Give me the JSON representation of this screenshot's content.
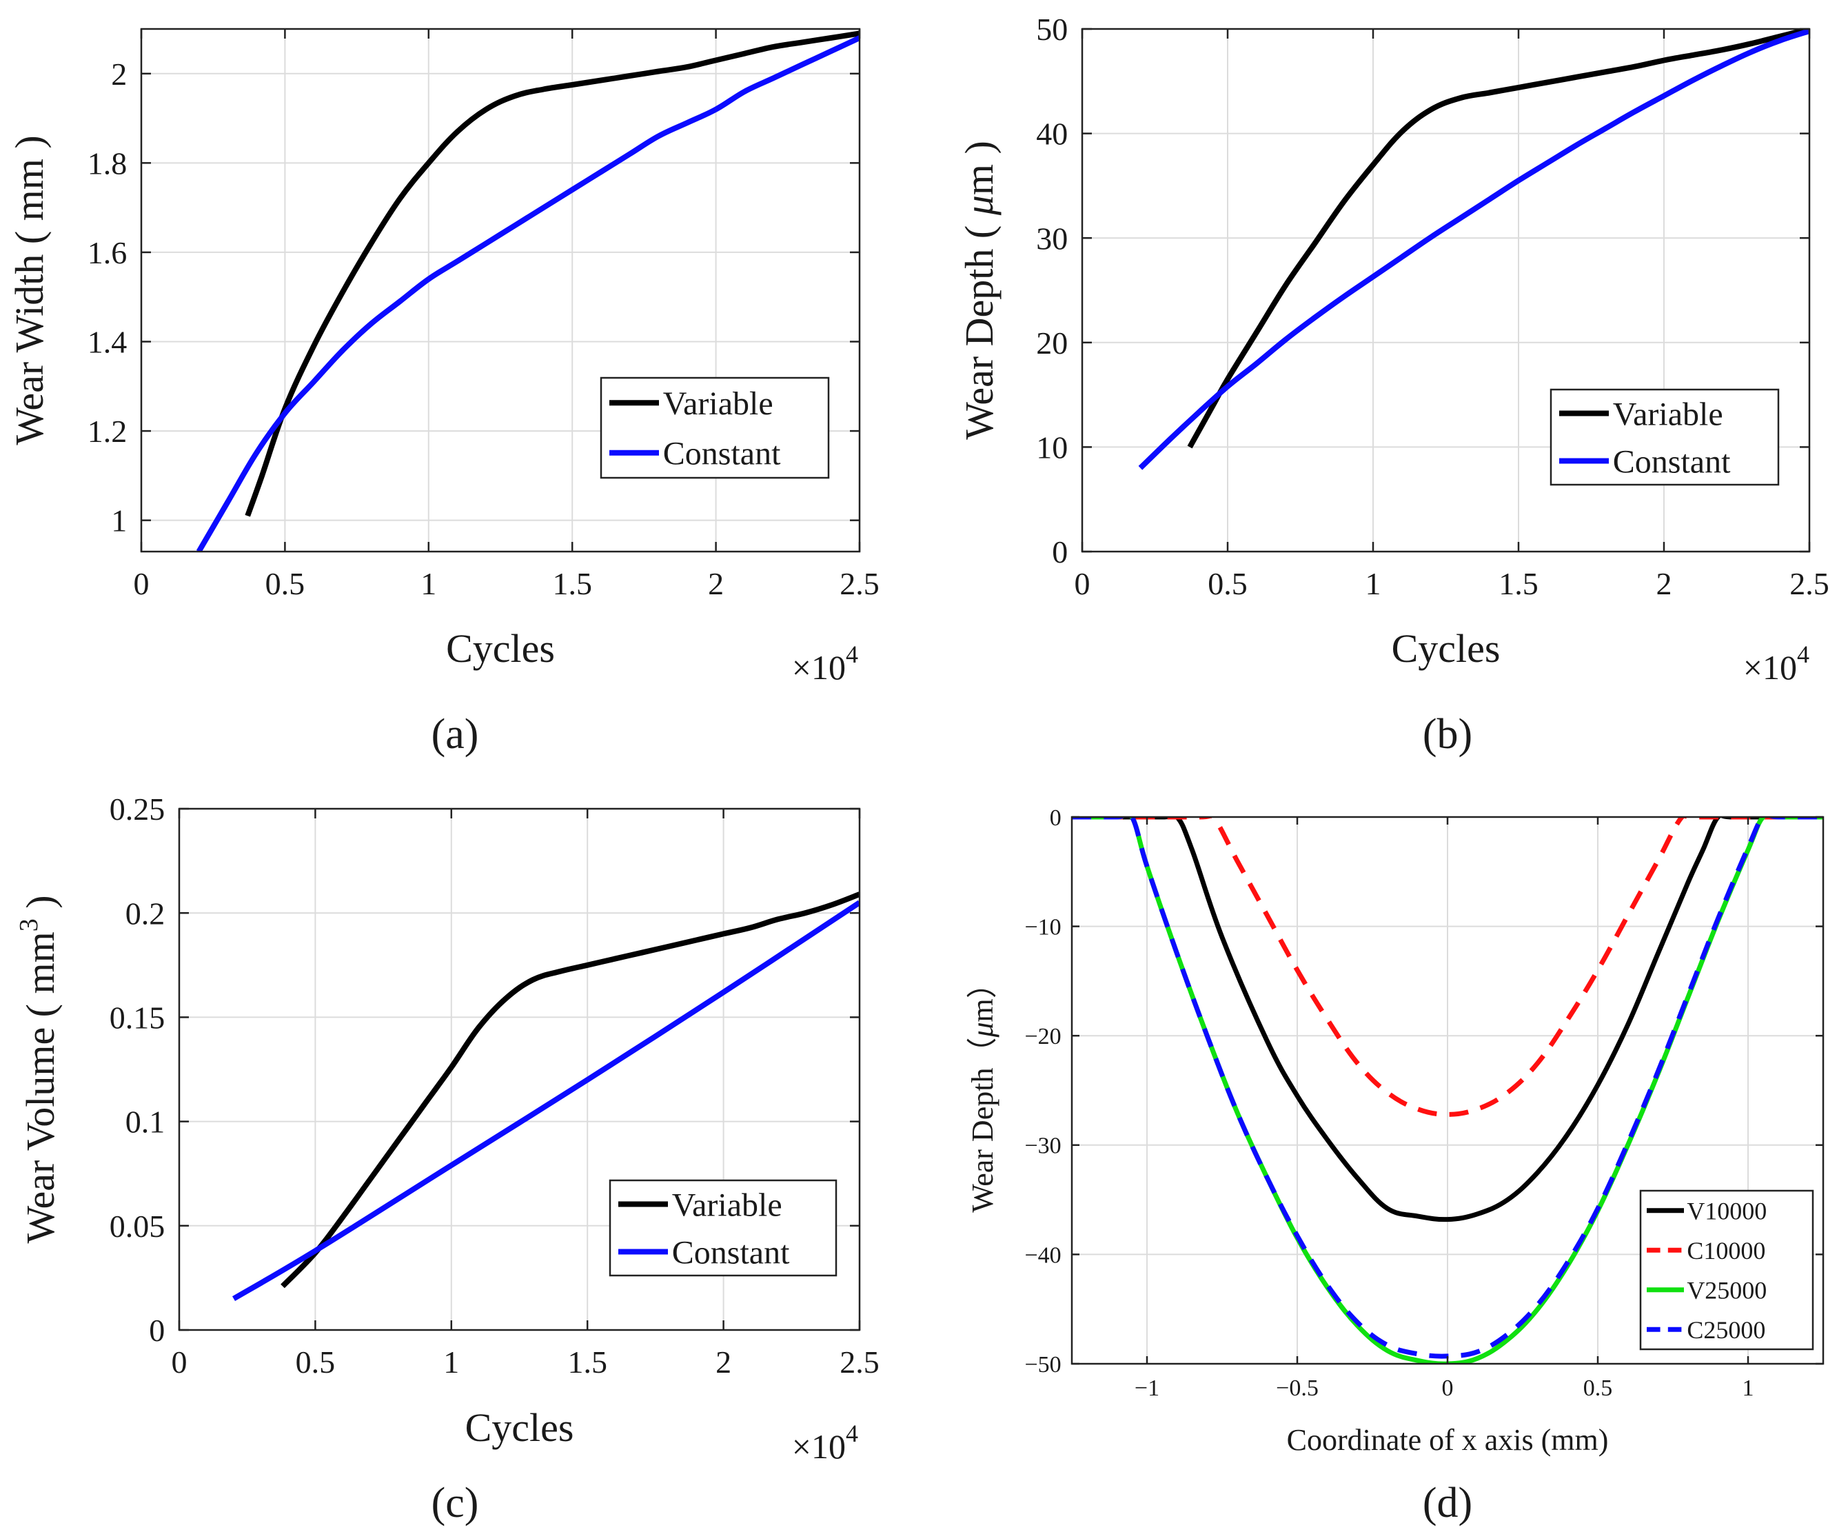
{
  "colors": {
    "variable": "#000000",
    "constant": "#0b0bff",
    "c10000": "#ff1010",
    "v25000": "#10e010",
    "c25000": "#0b0bff",
    "grid": "#dcdcdc",
    "axis": "#222222"
  },
  "chart_data": [
    {
      "id": "a",
      "type": "line",
      "panel_label": "(a)",
      "xlabel": "Cycles",
      "ylabel": "Wear Width ( mm )",
      "x_exponent": "×10",
      "x_exponent_power": "4",
      "xlim": [
        0,
        2.5
      ],
      "ylim": [
        0.93,
        2.1
      ],
      "xticks": [
        0,
        0.5,
        1,
        1.5,
        2,
        2.5
      ],
      "xtick_labels": [
        "0",
        "0.5",
        "1",
        "1.5",
        "2",
        "2.5"
      ],
      "yticks": [
        1,
        1.2,
        1.4,
        1.6,
        1.8,
        2
      ],
      "ytick_labels": [
        "1",
        "1.2",
        "1.4",
        "1.6",
        "1.8",
        "2"
      ],
      "legend_position": "lower-right",
      "series": [
        {
          "name": "Variable",
          "color_key": "variable",
          "dash": "solid",
          "x": [
            0.37,
            0.42,
            0.5,
            0.6,
            0.7,
            0.8,
            0.9,
            1.0,
            1.1,
            1.2,
            1.3,
            1.4,
            1.5,
            1.6,
            1.7,
            1.8,
            1.9,
            2.0,
            2.1,
            2.2,
            2.3,
            2.4,
            2.5
          ],
          "y": [
            1.01,
            1.1,
            1.25,
            1.39,
            1.51,
            1.62,
            1.72,
            1.8,
            1.87,
            1.92,
            1.95,
            1.965,
            1.975,
            1.985,
            1.995,
            2.005,
            2.015,
            2.03,
            2.045,
            2.06,
            2.07,
            2.08,
            2.09
          ]
        },
        {
          "name": "Constant",
          "color_key": "constant",
          "dash": "solid",
          "x": [
            0.2,
            0.3,
            0.4,
            0.5,
            0.6,
            0.7,
            0.8,
            0.9,
            1.0,
            1.1,
            1.2,
            1.3,
            1.4,
            1.5,
            1.6,
            1.7,
            1.8,
            1.9,
            2.0,
            2.1,
            2.2,
            2.3,
            2.4,
            2.5
          ],
          "y": [
            0.93,
            1.04,
            1.15,
            1.24,
            1.31,
            1.38,
            1.44,
            1.49,
            1.54,
            1.58,
            1.62,
            1.66,
            1.7,
            1.74,
            1.78,
            1.82,
            1.86,
            1.89,
            1.92,
            1.96,
            1.99,
            2.02,
            2.05,
            2.08
          ]
        }
      ]
    },
    {
      "id": "b",
      "type": "line",
      "panel_label": "(b)",
      "xlabel": "Cycles",
      "ylabel_main": "Wear Depth ( ",
      "ylabel_mu": "μ",
      "ylabel_rest": "m )",
      "x_exponent": "×10",
      "x_exponent_power": "4",
      "xlim": [
        0,
        2.5
      ],
      "ylim": [
        0,
        50
      ],
      "xticks": [
        0,
        0.5,
        1,
        1.5,
        2,
        2.5
      ],
      "xtick_labels": [
        "0",
        "0.5",
        "1",
        "1.5",
        "2",
        "2.5"
      ],
      "yticks": [
        0,
        10,
        20,
        30,
        40,
        50
      ],
      "ytick_labels": [
        "0",
        "10",
        "20",
        "30",
        "40",
        "50"
      ],
      "legend_position": "lower-right",
      "series": [
        {
          "name": "Variable",
          "color_key": "variable",
          "dash": "solid",
          "x": [
            0.37,
            0.45,
            0.5,
            0.6,
            0.7,
            0.8,
            0.9,
            1.0,
            1.1,
            1.2,
            1.3,
            1.4,
            1.5,
            1.6,
            1.7,
            1.8,
            1.9,
            2.0,
            2.1,
            2.2,
            2.3,
            2.4,
            2.5
          ],
          "y": [
            10,
            14,
            16.5,
            21,
            25.5,
            29.5,
            33.5,
            37,
            40.2,
            42.3,
            43.4,
            43.9,
            44.4,
            44.9,
            45.4,
            45.9,
            46.4,
            47,
            47.5,
            48,
            48.6,
            49.3,
            50
          ]
        },
        {
          "name": "Constant",
          "color_key": "constant",
          "dash": "solid",
          "x": [
            0.2,
            0.3,
            0.4,
            0.5,
            0.6,
            0.7,
            0.8,
            0.9,
            1.0,
            1.1,
            1.2,
            1.3,
            1.4,
            1.5,
            1.6,
            1.7,
            1.8,
            1.9,
            2.0,
            2.1,
            2.2,
            2.3,
            2.4,
            2.5
          ],
          "y": [
            8,
            10.7,
            13.3,
            15.8,
            18,
            20.3,
            22.4,
            24.4,
            26.3,
            28.2,
            30.1,
            31.9,
            33.7,
            35.5,
            37.2,
            38.9,
            40.5,
            42.1,
            43.6,
            45.1,
            46.5,
            47.8,
            48.9,
            49.8
          ]
        }
      ]
    },
    {
      "id": "c",
      "type": "line",
      "panel_label": "(c)",
      "xlabel": "Cycles",
      "ylabel_main": "Wear Volume ( mm",
      "ylabel_sup": "3",
      "ylabel_end": " )",
      "x_exponent": "×10",
      "x_exponent_power": "4",
      "xlim": [
        0,
        2.5
      ],
      "ylim": [
        0,
        0.25
      ],
      "xticks": [
        0,
        0.5,
        1,
        1.5,
        2,
        2.5
      ],
      "xtick_labels": [
        "0",
        "0.5",
        "1",
        "1.5",
        "2",
        "2.5"
      ],
      "yticks": [
        0,
        0.05,
        0.1,
        0.15,
        0.2,
        0.25
      ],
      "ytick_labels": [
        "0",
        "0.05",
        "0.1",
        "0.15",
        "0.2",
        "0.25"
      ],
      "legend_position": "lower-right",
      "series": [
        {
          "name": "Variable",
          "color_key": "variable",
          "dash": "solid",
          "x": [
            0.38,
            0.5,
            0.6,
            0.7,
            0.8,
            0.9,
            1.0,
            1.1,
            1.2,
            1.3,
            1.4,
            1.5,
            1.6,
            1.7,
            1.8,
            1.9,
            2.0,
            2.1,
            2.2,
            2.3,
            2.4,
            2.5
          ],
          "y": [
            0.021,
            0.037,
            0.054,
            0.072,
            0.09,
            0.108,
            0.126,
            0.145,
            0.159,
            0.168,
            0.172,
            0.175,
            0.178,
            0.181,
            0.184,
            0.187,
            0.19,
            0.193,
            0.197,
            0.2,
            0.204,
            0.209
          ]
        },
        {
          "name": "Constant",
          "color_key": "constant",
          "dash": "solid",
          "x": [
            0.2,
            0.5,
            1.0,
            1.5,
            2.0,
            2.5
          ],
          "y": [
            0.015,
            0.038,
            0.079,
            0.12,
            0.162,
            0.205
          ]
        }
      ]
    },
    {
      "id": "d",
      "type": "line",
      "panel_label": "(d)",
      "xlabel": "Coordinate of x axis (mm)",
      "ylabel_main": "Wear Depth（",
      "ylabel_mu": "μ",
      "ylabel_rest": "m）",
      "xlim": [
        -1.25,
        1.25
      ],
      "ylim": [
        -50,
        0
      ],
      "xticks": [
        -1,
        -0.5,
        0,
        0.5,
        1
      ],
      "xtick_labels": [
        "−1",
        "−0.5",
        "0",
        "0.5",
        "1"
      ],
      "yticks": [
        -50,
        -40,
        -30,
        -20,
        -10,
        0
      ],
      "ytick_labels": [
        "−50",
        "−40",
        "−30",
        "−20",
        "−10",
        "0"
      ],
      "legend_position": "lower-right",
      "series": [
        {
          "name": "V10000",
          "color_key": "variable",
          "dash": "solid",
          "x": [
            -1.25,
            -0.95,
            -0.9,
            -0.85,
            -0.75,
            -0.6,
            -0.5,
            -0.4,
            -0.3,
            -0.2,
            -0.1,
            0,
            0.1,
            0.2,
            0.3,
            0.4,
            0.5,
            0.6,
            0.7,
            0.8,
            0.85,
            0.9,
            0.95,
            1.25
          ],
          "y": [
            0,
            0,
            0,
            -3,
            -11,
            -20.5,
            -25.5,
            -29.5,
            -33,
            -35.8,
            -36.5,
            -36.8,
            -36.3,
            -35,
            -32.5,
            -29,
            -24.5,
            -19,
            -12.5,
            -6,
            -3,
            0,
            0,
            0
          ]
        },
        {
          "name": "C10000",
          "color_key": "c10000",
          "dash": "dash",
          "x": [
            -1.25,
            -0.83,
            -0.78,
            -0.7,
            -0.6,
            -0.5,
            -0.4,
            -0.3,
            -0.2,
            -0.1,
            0,
            0.1,
            0.2,
            0.3,
            0.4,
            0.5,
            0.6,
            0.7,
            0.78,
            0.83,
            1.25
          ],
          "y": [
            0,
            0,
            0,
            -4,
            -9,
            -14,
            -18.5,
            -22.5,
            -25.2,
            -26.7,
            -27.2,
            -26.7,
            -25.2,
            -22.5,
            -18.5,
            -14,
            -9,
            -4,
            0,
            0,
            0
          ],
          "smooth_dense": true
        },
        {
          "name": "V25000",
          "color_key": "v25000",
          "dash": "solid",
          "x": [
            -1.25,
            -1.1,
            -1.05,
            -1.0,
            -0.9,
            -0.8,
            -0.7,
            -0.6,
            -0.5,
            -0.4,
            -0.3,
            -0.2,
            -0.1,
            0,
            0.1,
            0.2,
            0.3,
            0.4,
            0.5,
            0.6,
            0.7,
            0.8,
            0.9,
            1.0,
            1.05,
            1.1,
            1.25
          ],
          "y": [
            0,
            0,
            0,
            -4.5,
            -12.5,
            -20,
            -27,
            -33,
            -38.5,
            -43,
            -46.5,
            -48.8,
            -49.7,
            -50,
            -49.5,
            -47.8,
            -45,
            -41,
            -36,
            -30,
            -23.5,
            -16.5,
            -9.5,
            -3,
            0,
            0,
            0
          ]
        },
        {
          "name": "C25000",
          "color_key": "c25000",
          "dash": "dash",
          "x": [
            -1.25,
            -1.1,
            -1.05,
            -1.0,
            -0.9,
            -0.8,
            -0.7,
            -0.6,
            -0.5,
            -0.4,
            -0.3,
            -0.2,
            -0.1,
            0,
            0.1,
            0.2,
            0.3,
            0.4,
            0.5,
            0.6,
            0.7,
            0.8,
            0.9,
            1.0,
            1.05,
            1.1,
            1.25
          ],
          "y": [
            0,
            0,
            0,
            -4.5,
            -12.5,
            -20,
            -27,
            -33,
            -38.3,
            -42.8,
            -46.2,
            -48.3,
            -49.1,
            -49.3,
            -48.9,
            -47.3,
            -44.6,
            -40.7,
            -35.8,
            -29.8,
            -23.3,
            -16.3,
            -9.3,
            -2.8,
            0,
            0,
            0
          ]
        }
      ]
    }
  ]
}
